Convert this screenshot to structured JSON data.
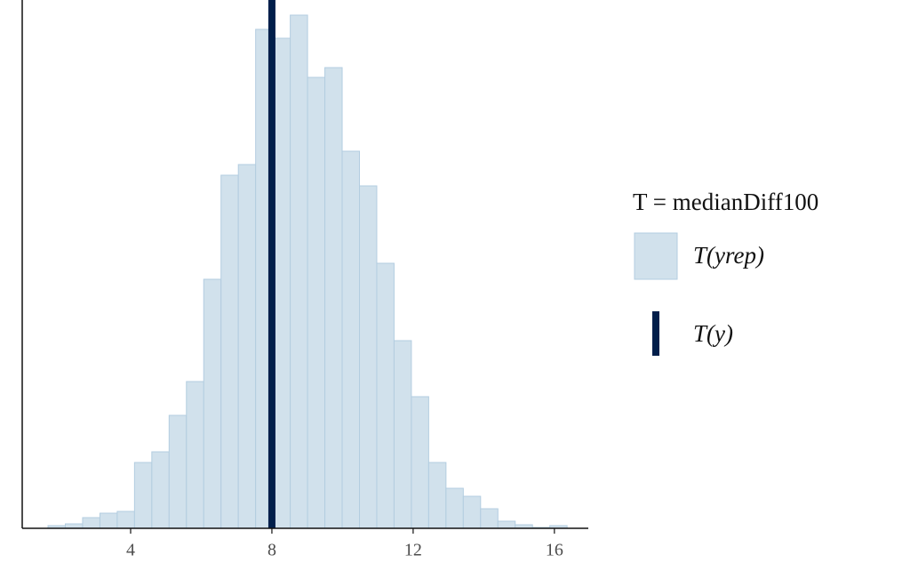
{
  "chart_data": {
    "type": "histogram",
    "bins": [
      1.66,
      2.15,
      2.64,
      3.13,
      3.62,
      4.11,
      4.6,
      5.09,
      5.58,
      6.07,
      6.56,
      7.05,
      7.54,
      8.03,
      8.52,
      9.01,
      9.5,
      9.99,
      10.48,
      10.97,
      11.46,
      11.95,
      12.44,
      12.93,
      13.42,
      13.91,
      14.4,
      14.89,
      15.38,
      15.87,
      16.36
    ],
    "series": [
      {
        "name": "T(yrep)",
        "color": "#d1e1ec",
        "edge_color": "#b3cde0",
        "values": [
          3,
          5,
          12,
          17,
          19,
          74,
          86,
          127,
          165,
          280,
          397,
          409,
          561,
          551,
          577,
          507,
          518,
          424,
          385,
          298,
          211,
          148,
          74,
          45,
          36,
          22,
          8,
          4,
          1,
          3
        ]
      }
    ],
    "stat": {
      "name": "T(y)",
      "value": 8.0,
      "color": "#011f4b"
    },
    "legend_title": "T = medianDiff100",
    "xlim": [
      0.93,
      16.96
    ],
    "ylim": [
      0,
      594
    ],
    "xticks": [
      4,
      8,
      12,
      16
    ]
  }
}
